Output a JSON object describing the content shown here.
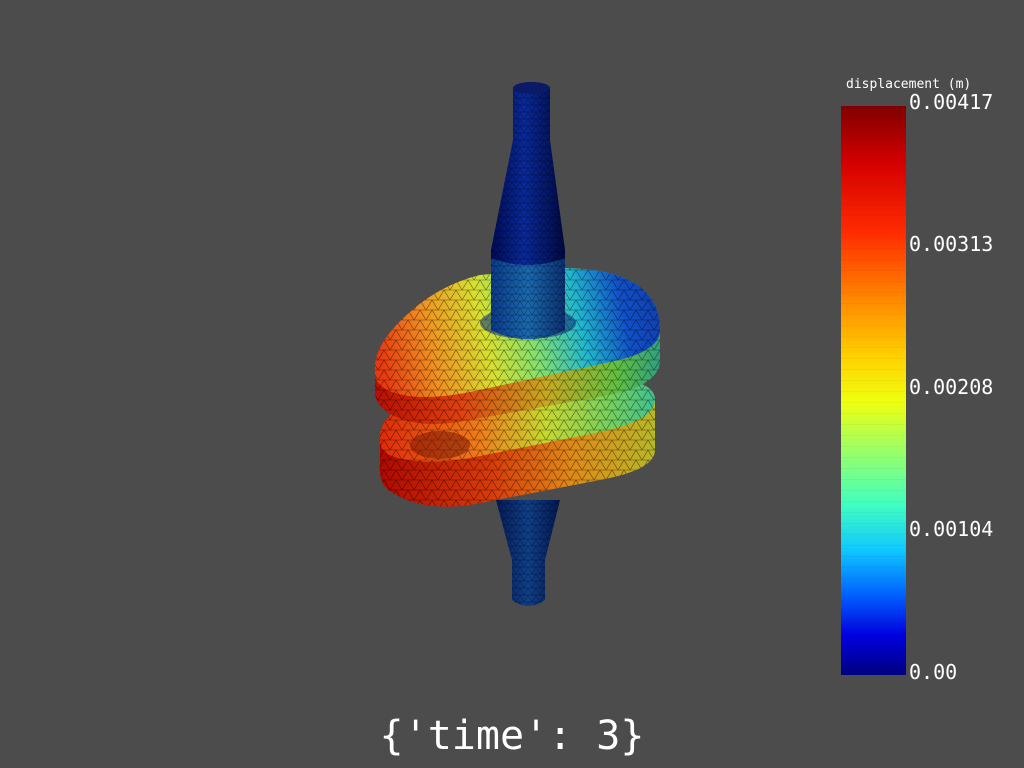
{
  "scalar_bar": {
    "title": "displacement (m)",
    "ticks": [
      "0.00417",
      "0.00313",
      "0.00208",
      "0.00104",
      "0.00"
    ],
    "colormap": "jet",
    "min": 0.0,
    "max": 0.00417
  },
  "caption": "{'time': 3}",
  "colors": {
    "background": "#4c4c4c",
    "text": "#ffffff"
  }
}
